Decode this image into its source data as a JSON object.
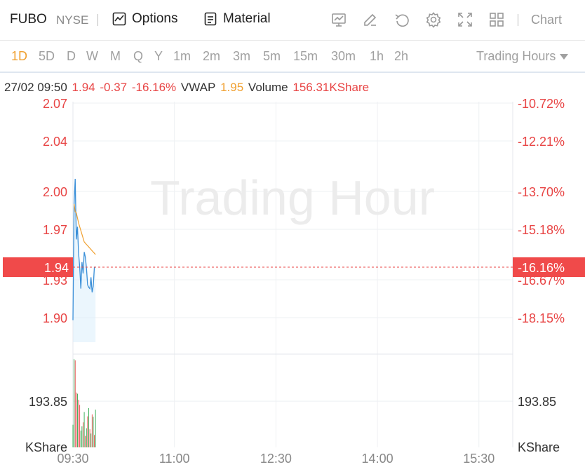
{
  "toolbar": {
    "ticker": "FUBO",
    "exchange": "NYSE",
    "options_label": "Options",
    "material_label": "Material",
    "chart_label": "Chart",
    "icons": [
      "indicator-chart-icon",
      "draw-icon",
      "undo-icon",
      "settings-icon",
      "fullscreen-icon",
      "layout-grid-icon"
    ]
  },
  "periods": [
    "1D",
    "5D",
    "D",
    "W",
    "M",
    "Q",
    "Y",
    "1m",
    "2m",
    "3m",
    "5m",
    "15m",
    "30m",
    "1h",
    "2h"
  ],
  "active_period": "1D",
  "session_label": "Trading Hours",
  "info": {
    "datetime": "27/02 09:50",
    "price": "1.94",
    "change": "-0.37",
    "change_pct": "-16.16%",
    "vwap_label": "VWAP",
    "vwap": "1.95",
    "volume_label": "Volume",
    "volume": "156.31KShare"
  },
  "watermark": "Trading Hour",
  "colors": {
    "up": "#2ba84a",
    "down": "#e84545",
    "price_line": "#3a8fd8",
    "vwap_line": "#f0a030",
    "text_red": "#e84545"
  },
  "chart_data": {
    "type": "line",
    "price_axis": {
      "ticks": [
        2.07,
        2.04,
        2.0,
        1.97,
        1.93,
        1.9
      ],
      "tick_labels": [
        "2.07",
        "2.04",
        "2.00",
        "1.97",
        "1.93",
        "1.90"
      ],
      "pct_labels": [
        "-10.72%",
        "-12.21%",
        "-13.70%",
        "-15.18%",
        "-16.67%",
        "-18.15%"
      ],
      "current_price": "1.94",
      "current_pct": "-16.16%"
    },
    "volume_axis": {
      "tick_label": "193.85",
      "unit_label": "KShare",
      "tick_value": 193.85
    },
    "x_ticks": [
      "09:30",
      "11:00",
      "12:30",
      "14:00",
      "15:30"
    ],
    "session": {
      "start_min": 570,
      "end_min": 960
    },
    "series": [
      {
        "kind": "price",
        "x_min": [
          570,
          571,
          572,
          573,
          574,
          575,
          576,
          577,
          578,
          579,
          580,
          581,
          582,
          583,
          584,
          585,
          586,
          587,
          588,
          589,
          590
        ],
        "values": [
          1.898,
          1.99,
          2.01,
          1.962,
          1.972,
          1.951,
          1.94,
          1.923,
          1.944,
          1.935,
          1.952,
          1.948,
          1.939,
          1.926,
          1.924,
          1.923,
          1.932,
          1.92,
          1.925,
          1.94,
          1.94
        ]
      },
      {
        "kind": "vwap",
        "x_min": [
          571,
          572,
          573,
          574,
          575,
          576,
          577,
          578,
          579,
          580,
          581,
          582,
          583,
          584,
          585,
          586,
          587,
          588,
          589,
          590
        ],
        "values": [
          1.99,
          1.984,
          1.983,
          1.979,
          1.975,
          1.972,
          1.969,
          1.966,
          1.963,
          1.96,
          1.959,
          1.958,
          1.957,
          1.956,
          1.955,
          1.954,
          1.953,
          1.952,
          1.951,
          1.95
        ]
      }
    ],
    "volume": {
      "x_min": [
        570,
        571,
        572,
        573,
        574,
        575,
        576,
        577,
        578,
        579,
        580,
        581,
        582,
        583,
        584,
        585,
        586,
        587,
        588,
        589,
        590
      ],
      "values": [
        95,
        370,
        365,
        230,
        225,
        200,
        178,
        70,
        88,
        105,
        148,
        48,
        80,
        130,
        165,
        76,
        58,
        138,
        128,
        52,
        158
      ],
      "direction": [
        "up",
        "up",
        "down",
        "down",
        "up",
        "down",
        "down",
        "up",
        "up",
        "down",
        "up",
        "down",
        "up",
        "down",
        "up",
        "down",
        "up",
        "down",
        "up",
        "down",
        "up"
      ]
    }
  }
}
